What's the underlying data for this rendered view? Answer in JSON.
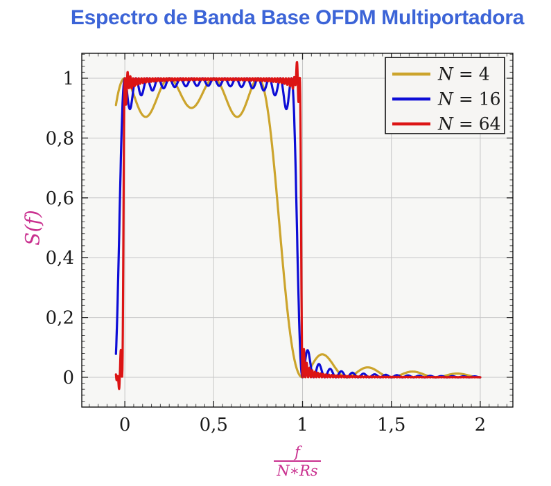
{
  "chart_data": {
    "type": "line",
    "title": "Espectro de Banda Base OFDM Multiportadora",
    "title_color": "#3C64D7",
    "ylabel": "S(f)",
    "xlabel_fraction": {
      "numerator": "f",
      "denominator": "N∗Rs"
    },
    "axis_label_color": "#C9308F",
    "tick_label_color": "#1a1a1a",
    "xlim": [
      -0.2422,
      2.1836
    ],
    "ylim": [
      -0.0995,
      1.0833
    ],
    "x_data_range": [
      -0.05,
      2.0
    ],
    "xticks": [
      {
        "v": 0,
        "label": "0"
      },
      {
        "v": 0.5,
        "label": "0,5"
      },
      {
        "v": 1,
        "label": "1"
      },
      {
        "v": 1.5,
        "label": "1,5"
      },
      {
        "v": 2,
        "label": "2"
      }
    ],
    "yticks": [
      {
        "v": 0,
        "label": "0"
      },
      {
        "v": 0.2,
        "label": "0,2"
      },
      {
        "v": 0.4,
        "label": "0,4"
      },
      {
        "v": 0.6,
        "label": "0,6"
      },
      {
        "v": 0.8,
        "label": "0,8"
      },
      {
        "v": 1,
        "label": "1"
      }
    ],
    "minor_x_step": 0.05,
    "minor_y_step": 0.02,
    "grid": "major",
    "grid_color": "#c6c6c6",
    "plot_background": "#F7F7F5",
    "frame_color": "#000000",
    "legend": {
      "position": "top-right",
      "background": "#F6F5F3",
      "border_color": "#111111",
      "entries": [
        "N = 4",
        "N = 16",
        "N = 64"
      ]
    },
    "model_formula": "S(x) = sum_{k=0}^{N-1} sinc^2(N*x - k),  x = f/(N*Rs)",
    "line_width": 3.2,
    "series": [
      {
        "name": "N = 4",
        "color": "#CCA42C",
        "model": "ofdm_sum_sinc2",
        "N": 4,
        "samples": 700,
        "key_points": "passband peaks=1 at x=0,0.25,0.5,0.75; valleys≈0.87; null at x=1; sidelobes 0.076@1.11, 0.05@1.37, 0.03@1.62, 0.015@1.87",
        "edge_spikes": []
      },
      {
        "name": "N = 16",
        "color": "#0D0DD6",
        "model": "ofdm_sum_sinc2",
        "N": 16,
        "samples": 1100,
        "key_points": "peaks=1 at x=k/16; interior valleys≈0.95; edge valleys≈0.88; null at x=1; first sidelobe 0.085@1.03",
        "edge_spikes": []
      },
      {
        "name": "N = 64",
        "color": "#DC1414",
        "model": "ofdm_sum_sinc2",
        "N": 64,
        "samples": 1700,
        "key_points": "near-flat passband ripple 0.98-1.0; Gibbs overshoot 1.04@0.97; undershoot -0.035@-0.035; sharp edges at x=0 and x=1; tiny sidelobes <0.03",
        "edge_spikes": [
          {
            "x": -0.036,
            "amp": -0.052,
            "w": 0.008
          },
          {
            "x": 0.018,
            "amp": 0.022,
            "w": 0.012
          },
          {
            "x": 0.968,
            "amp": 0.055,
            "w": 0.009
          }
        ]
      }
    ]
  }
}
